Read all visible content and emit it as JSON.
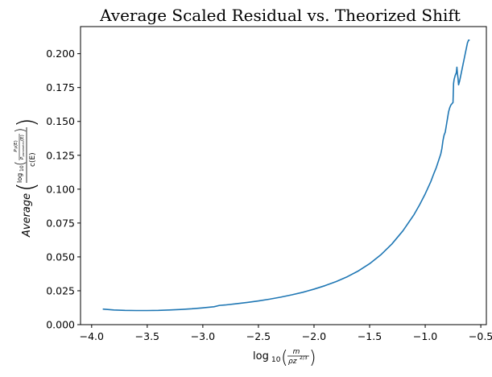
{
  "chart_data": {
    "type": "line",
    "title": "Average Scaled Residual vs. Theorized Shift",
    "xlabel": "log10(m / ρz^(2/3))",
    "ylabel": "Average( log10( P_P(E) / P_parametric(E) ) / c(E) )",
    "xlim": [
      -4.1,
      -0.45
    ],
    "ylim": [
      0.0,
      0.22
    ],
    "x_ticks": [
      -4.0,
      -3.5,
      -3.0,
      -2.5,
      -2.0,
      -1.5,
      -1.0,
      -0.5
    ],
    "x_tick_labels": [
      "−4.0",
      "−3.5",
      "−3.0",
      "−2.5",
      "−2.0",
      "−1.5",
      "−1.0",
      "−0.5"
    ],
    "y_ticks": [
      0.0,
      0.025,
      0.05,
      0.075,
      0.1,
      0.125,
      0.15,
      0.175,
      0.2
    ],
    "y_tick_labels": [
      "0.000",
      "0.025",
      "0.050",
      "0.075",
      "0.100",
      "0.125",
      "0.150",
      "0.175",
      "0.200"
    ],
    "grid": false,
    "series_color": "#1f77b4",
    "series": [
      {
        "x": [
          -3.9,
          -3.8,
          -3.7,
          -3.6,
          -3.5,
          -3.4,
          -3.3,
          -3.2,
          -3.1,
          -3.0,
          -2.9,
          -2.85,
          -2.8,
          -2.7,
          -2.6,
          -2.5,
          -2.4,
          -2.3,
          -2.2,
          -2.1,
          -2.0,
          -1.9,
          -1.8,
          -1.7,
          -1.6,
          -1.5,
          -1.4,
          -1.3,
          -1.2,
          -1.1,
          -1.05,
          -1.0,
          -0.95,
          -0.92,
          -0.9,
          -0.88,
          -0.86,
          -0.85,
          -0.84,
          -0.83,
          -0.82,
          -0.81,
          -0.8,
          -0.79,
          -0.78,
          -0.77,
          -0.76,
          -0.75,
          -0.745,
          -0.74,
          -0.73,
          -0.72,
          -0.715,
          -0.71,
          -0.705,
          -0.7,
          -0.69,
          -0.68,
          -0.67,
          -0.66,
          -0.65,
          -0.64,
          -0.63,
          -0.62,
          -0.61,
          -0.6
        ],
        "y": [
          0.0115,
          0.0108,
          0.0105,
          0.0104,
          0.0104,
          0.0105,
          0.0108,
          0.0112,
          0.0117,
          0.0124,
          0.0132,
          0.0142,
          0.0145,
          0.0154,
          0.0164,
          0.0175,
          0.0188,
          0.0203,
          0.022,
          0.0239,
          0.0262,
          0.0288,
          0.0318,
          0.0354,
          0.0397,
          0.045,
          0.0515,
          0.0595,
          0.0693,
          0.0813,
          0.0885,
          0.0965,
          0.1055,
          0.112,
          0.116,
          0.121,
          0.126,
          0.13,
          0.136,
          0.14,
          0.142,
          0.147,
          0.152,
          0.157,
          0.16,
          0.162,
          0.163,
          0.164,
          0.178,
          0.181,
          0.184,
          0.186,
          0.19,
          0.185,
          0.182,
          0.177,
          0.18,
          0.184,
          0.188,
          0.192,
          0.196,
          0.2,
          0.204,
          0.208,
          0.21,
          0.21
        ]
      }
    ]
  }
}
